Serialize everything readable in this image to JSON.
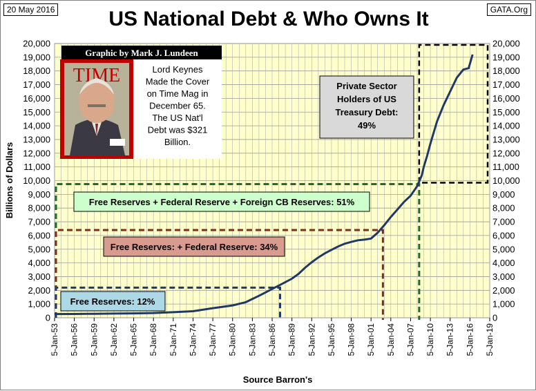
{
  "header": {
    "date": "20 May 2016",
    "source": "GATA.Org",
    "title": "US National Debt & Who Owns It"
  },
  "colors": {
    "plot_bg": "#ffffcc",
    "debt_line": "#1f3864",
    "free_reserves": "#1f3864",
    "federal_reserve": "#7f2c1a",
    "foreign_cb": "#1e6b2e",
    "private_sector": "#000000"
  },
  "inset": {
    "banner": "Graphic by Mark J. Lundeen",
    "magazine_logo": "TIME",
    "caption_lines": [
      "Lord Keynes",
      "Made the Cover",
      "on Time Mag in",
      "December 65.",
      "The US Nat'l",
      "Debt was $321",
      "Billion."
    ]
  },
  "annotations": {
    "private_sector_lines": [
      "Private Sector",
      "Holders of US",
      "Treasury Debt:",
      "49%"
    ],
    "foreign_cb": "Free Reserves + Federal Reserve + Foreign CB Reserves: 51%",
    "federal_reserve": "Free Reserves: + Federal Reserve: 34%",
    "free_reserves": "Free Reserves: 12%"
  },
  "chart_data": {
    "type": "line",
    "title": "US National Debt & Who Owns It",
    "xlabel": "Source Barron's",
    "ylabel": "Billions of Dollars",
    "ylim": [
      0,
      20000
    ],
    "xlim": [
      1953,
      2019
    ],
    "grid": true,
    "yticks": [
      "0",
      "1,000",
      "2,000",
      "3,000",
      "4,000",
      "5,000",
      "6,000",
      "7,000",
      "8,000",
      "9,000",
      "10,000",
      "11,000",
      "12,000",
      "13,000",
      "14,000",
      "15,000",
      "16,000",
      "17,000",
      "18,000",
      "19,000",
      "20,000"
    ],
    "xticks": [
      "5-Jan-53",
      "5-Jan-56",
      "5-Jan-59",
      "5-Jan-62",
      "5-Jan-65",
      "5-Jan-68",
      "5-Jan-71",
      "5-Jan-74",
      "5-Jan-77",
      "5-Jan-80",
      "5-Jan-83",
      "5-Jan-86",
      "5-Jan-89",
      "5-Jan-92",
      "5-Jan-95",
      "5-Jan-98",
      "5-Jan-01",
      "5-Jan-04",
      "5-Jan-07",
      "5-Jan-10",
      "5-Jan-13",
      "5-Jan-16",
      "5-Jan-19"
    ],
    "series": [
      {
        "x": [
          1953,
          1956,
          1959,
          1962,
          1965,
          1968,
          1971,
          1974,
          1977,
          1980,
          1982,
          1984,
          1986,
          1987,
          1988,
          1989,
          1990,
          1991,
          1992,
          1993,
          1994,
          1995,
          1996,
          1997,
          1998,
          1999,
          2000,
          2001,
          2002,
          2003,
          2004,
          2005,
          2006,
          2007,
          2008,
          2008.7,
          2009,
          2009.5,
          2010,
          2011,
          2012,
          2013,
          2014,
          2015,
          2015.8,
          2016.4
        ],
        "y": [
          270,
          275,
          290,
          305,
          321,
          350,
          410,
          480,
          700,
          900,
          1140,
          1600,
          2100,
          2350,
          2600,
          2850,
          3200,
          3650,
          4050,
          4400,
          4700,
          4950,
          5200,
          5400,
          5530,
          5650,
          5700,
          5780,
          6200,
          6750,
          7350,
          7900,
          8450,
          8900,
          9600,
          10400,
          11000,
          11800,
          12700,
          14300,
          15500,
          16500,
          17500,
          18100,
          18200,
          19200
        ]
      }
    ],
    "ownership_levels": {
      "free_reserves": {
        "debt_level": 2200,
        "year": 1987.2
      },
      "federal_reserve": {
        "debt_level": 6400,
        "year": 2002.8
      },
      "foreign_cb": {
        "debt_level": 9750,
        "year": 2008.3
      },
      "private_sector": {
        "debt_level_range": [
          9850,
          20000
        ],
        "year_range": [
          2008.3,
          2019
        ]
      }
    }
  }
}
